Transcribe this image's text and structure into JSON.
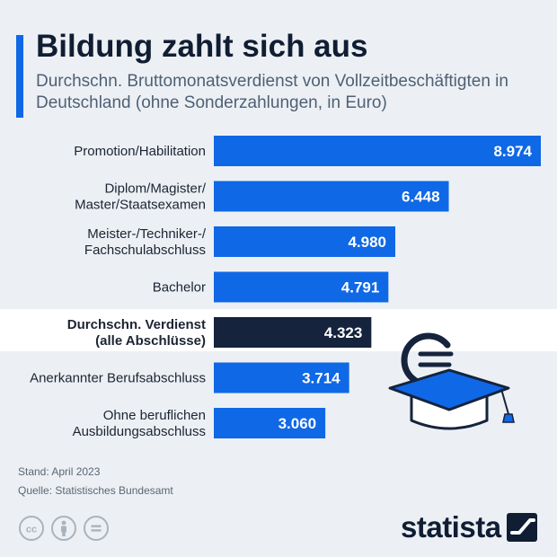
{
  "header": {
    "title": "Bildung zahlt sich aus",
    "subtitle": "Durchschn. Bruttomonatsverdienst von Vollzeitbeschäftigten in Deutschland (ohne Sonderzahlungen, in Euro)"
  },
  "chart_data": {
    "type": "bar",
    "orientation": "horizontal",
    "title": "Bildung zahlt sich aus",
    "subtitle": "Durchschn. Bruttomonatsverdienst von Vollzeitbeschäftigten in Deutschland (ohne Sonderzahlungen, in Euro)",
    "xlabel": "",
    "ylabel": "",
    "grid": false,
    "xlim": [
      0,
      8974
    ],
    "categories": [
      [
        "Promotion/Habilitation"
      ],
      [
        "Diplom/Magister/",
        "Master/Staatsexamen"
      ],
      [
        "Meister-/Techniker-/",
        "Fachschulabschluss"
      ],
      [
        "Bachelor"
      ],
      [
        "Durchschn. Verdienst",
        "(alle Abschlüsse)"
      ],
      [
        "Anerkannter Berufsabschluss"
      ],
      [
        "Ohne beruflichen",
        "Ausbildungsabschluss"
      ]
    ],
    "values": [
      8974,
      6448,
      4980,
      4791,
      4323,
      3714,
      3060
    ],
    "value_labels": [
      "8.974",
      "6.448",
      "4.980",
      "4.791",
      "4.323",
      "3.714",
      "3.060"
    ],
    "highlight_index": 4,
    "colors": {
      "bar": "#0f68e6",
      "highlight_bar": "#15233d",
      "highlight_row_bg": "#ffffff"
    }
  },
  "footer": {
    "stand": "Stand: April 2023",
    "quelle": "Quelle: Statistisches Bundesamt",
    "brand": "statista"
  },
  "icons": {
    "illustration": "graduation-cap-euro-icon",
    "license": [
      "cc-icon",
      "attribution-icon",
      "no-derivatives-icon"
    ],
    "logo": "statista-logo-icon"
  },
  "colors": {
    "accent": "#0f68e6",
    "background": "#ecf0f4",
    "dark": "#101d33"
  }
}
